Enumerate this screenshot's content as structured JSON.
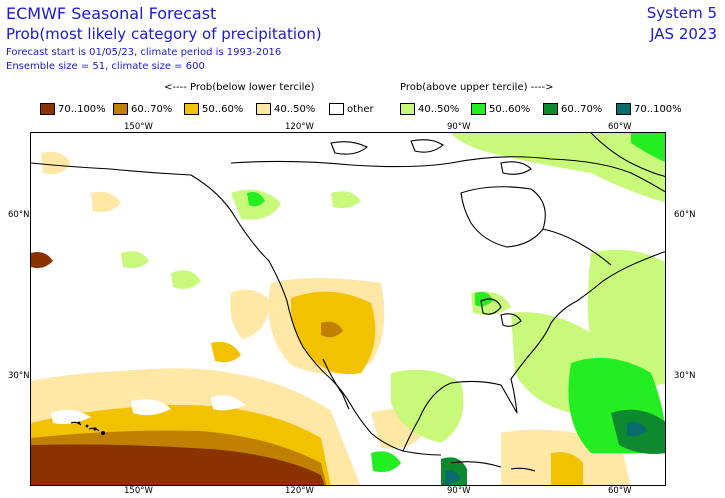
{
  "header": {
    "title": "ECMWF Seasonal Forecast",
    "subtitle": "Prob(most likely category of precipitation)",
    "forecast_info": "Forecast start is 01/05/23, climate period is 1993-2016",
    "ensemble_info": "Ensemble size = 51, climate size = 600",
    "system": "System 5",
    "season": "JAS 2023"
  },
  "legend": {
    "below_header": "<---- Prob(below lower tercile)",
    "above_header": "Prob(above upper tercile) ---->",
    "items": [
      {
        "label": "70..100%",
        "color": "#8b3300"
      },
      {
        "label": "60..70%",
        "color": "#c08000"
      },
      {
        "label": "50..60%",
        "color": "#f2c200"
      },
      {
        "label": "40..50%",
        "color": "#ffe7a6"
      },
      {
        "label": "other",
        "color": "#ffffff"
      },
      {
        "label": "40..50%",
        "color": "#c9f97a"
      },
      {
        "label": "50..60%",
        "color": "#22ee22"
      },
      {
        "label": "60..70%",
        "color": "#0e8a2e"
      },
      {
        "label": "70..100%",
        "color": "#0a6b6e"
      }
    ]
  },
  "axes": {
    "lon_top": [
      "150°W",
      "120°W",
      "90°W",
      "60°W"
    ],
    "lon_bottom": [
      "150°W",
      "120°W",
      "90°W",
      "60°W"
    ],
    "lat_left": [
      "60°N",
      "30°N"
    ],
    "lat_right": [
      "60°N",
      "30°N"
    ]
  }
}
